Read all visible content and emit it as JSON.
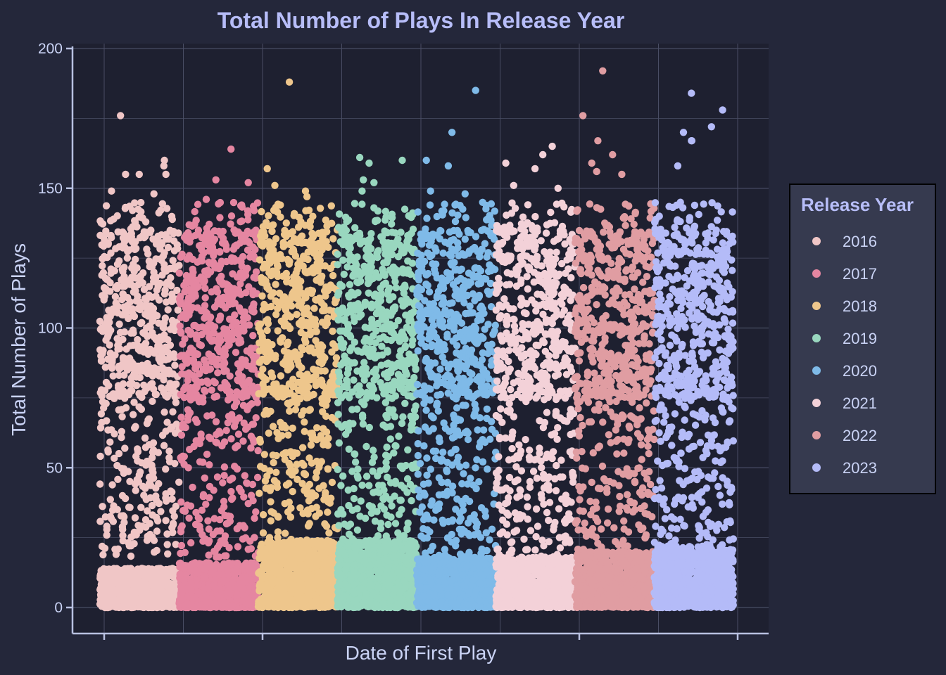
{
  "colors": {
    "background": "#24273a",
    "panel": "#1e2030",
    "grid": "#494d64",
    "text": "#cad3f5",
    "title": "#b7bdf8",
    "axis_line": "#b8c0e0",
    "legend_bg": "#363a4f",
    "legend_border": "#000000"
  },
  "chart_data": {
    "type": "scatter",
    "title": "Total Number of Plays In Release Year",
    "xlabel": "Date of First Play",
    "ylabel": "Total Number of Plays",
    "ylim": [
      -8,
      201
    ],
    "yticks": [
      0,
      50,
      100,
      150,
      200
    ],
    "x_tick_labels": [],
    "grid": true,
    "legend": {
      "title": "Release Year",
      "position": "right"
    },
    "series": [
      {
        "name": "2016",
        "color": "#f0c6c6",
        "max": 176,
        "spread": 0.98,
        "dense_level": 14,
        "outliers": [
          176,
          160,
          158,
          155,
          155,
          155,
          149,
          148
        ]
      },
      {
        "name": "2017",
        "color": "#e586a1",
        "max": 164,
        "spread": 0.98,
        "dense_level": 16,
        "outliers": [
          164,
          153,
          152,
          146,
          144
        ]
      },
      {
        "name": "2018",
        "color": "#eec68c",
        "max": 188,
        "spread": 0.98,
        "dense_level": 24,
        "outliers": [
          188,
          157,
          151,
          149,
          147
        ]
      },
      {
        "name": "2019",
        "color": "#99d7bf",
        "max": 161,
        "spread": 0.98,
        "dense_level": 24,
        "outliers": [
          161,
          160,
          159,
          153,
          152,
          149
        ]
      },
      {
        "name": "2020",
        "color": "#7fbae8",
        "max": 185,
        "spread": 0.98,
        "dense_level": 18,
        "outliers": [
          185,
          170,
          160,
          158,
          149,
          148
        ]
      },
      {
        "name": "2021",
        "color": "#f3d1d8",
        "max": 165,
        "spread": 0.98,
        "dense_level": 18,
        "outliers": [
          165,
          162,
          159,
          157,
          151,
          150
        ]
      },
      {
        "name": "2022",
        "color": "#e09da2",
        "max": 192,
        "spread": 0.98,
        "dense_level": 20,
        "outliers": [
          192,
          176,
          167,
          162,
          159,
          156,
          155
        ]
      },
      {
        "name": "2023",
        "color": "#b4bbf8",
        "max": 184,
        "spread": 0.98,
        "dense_level": 22,
        "outliers": [
          184,
          178,
          172,
          170,
          167,
          167,
          158
        ]
      }
    ]
  }
}
